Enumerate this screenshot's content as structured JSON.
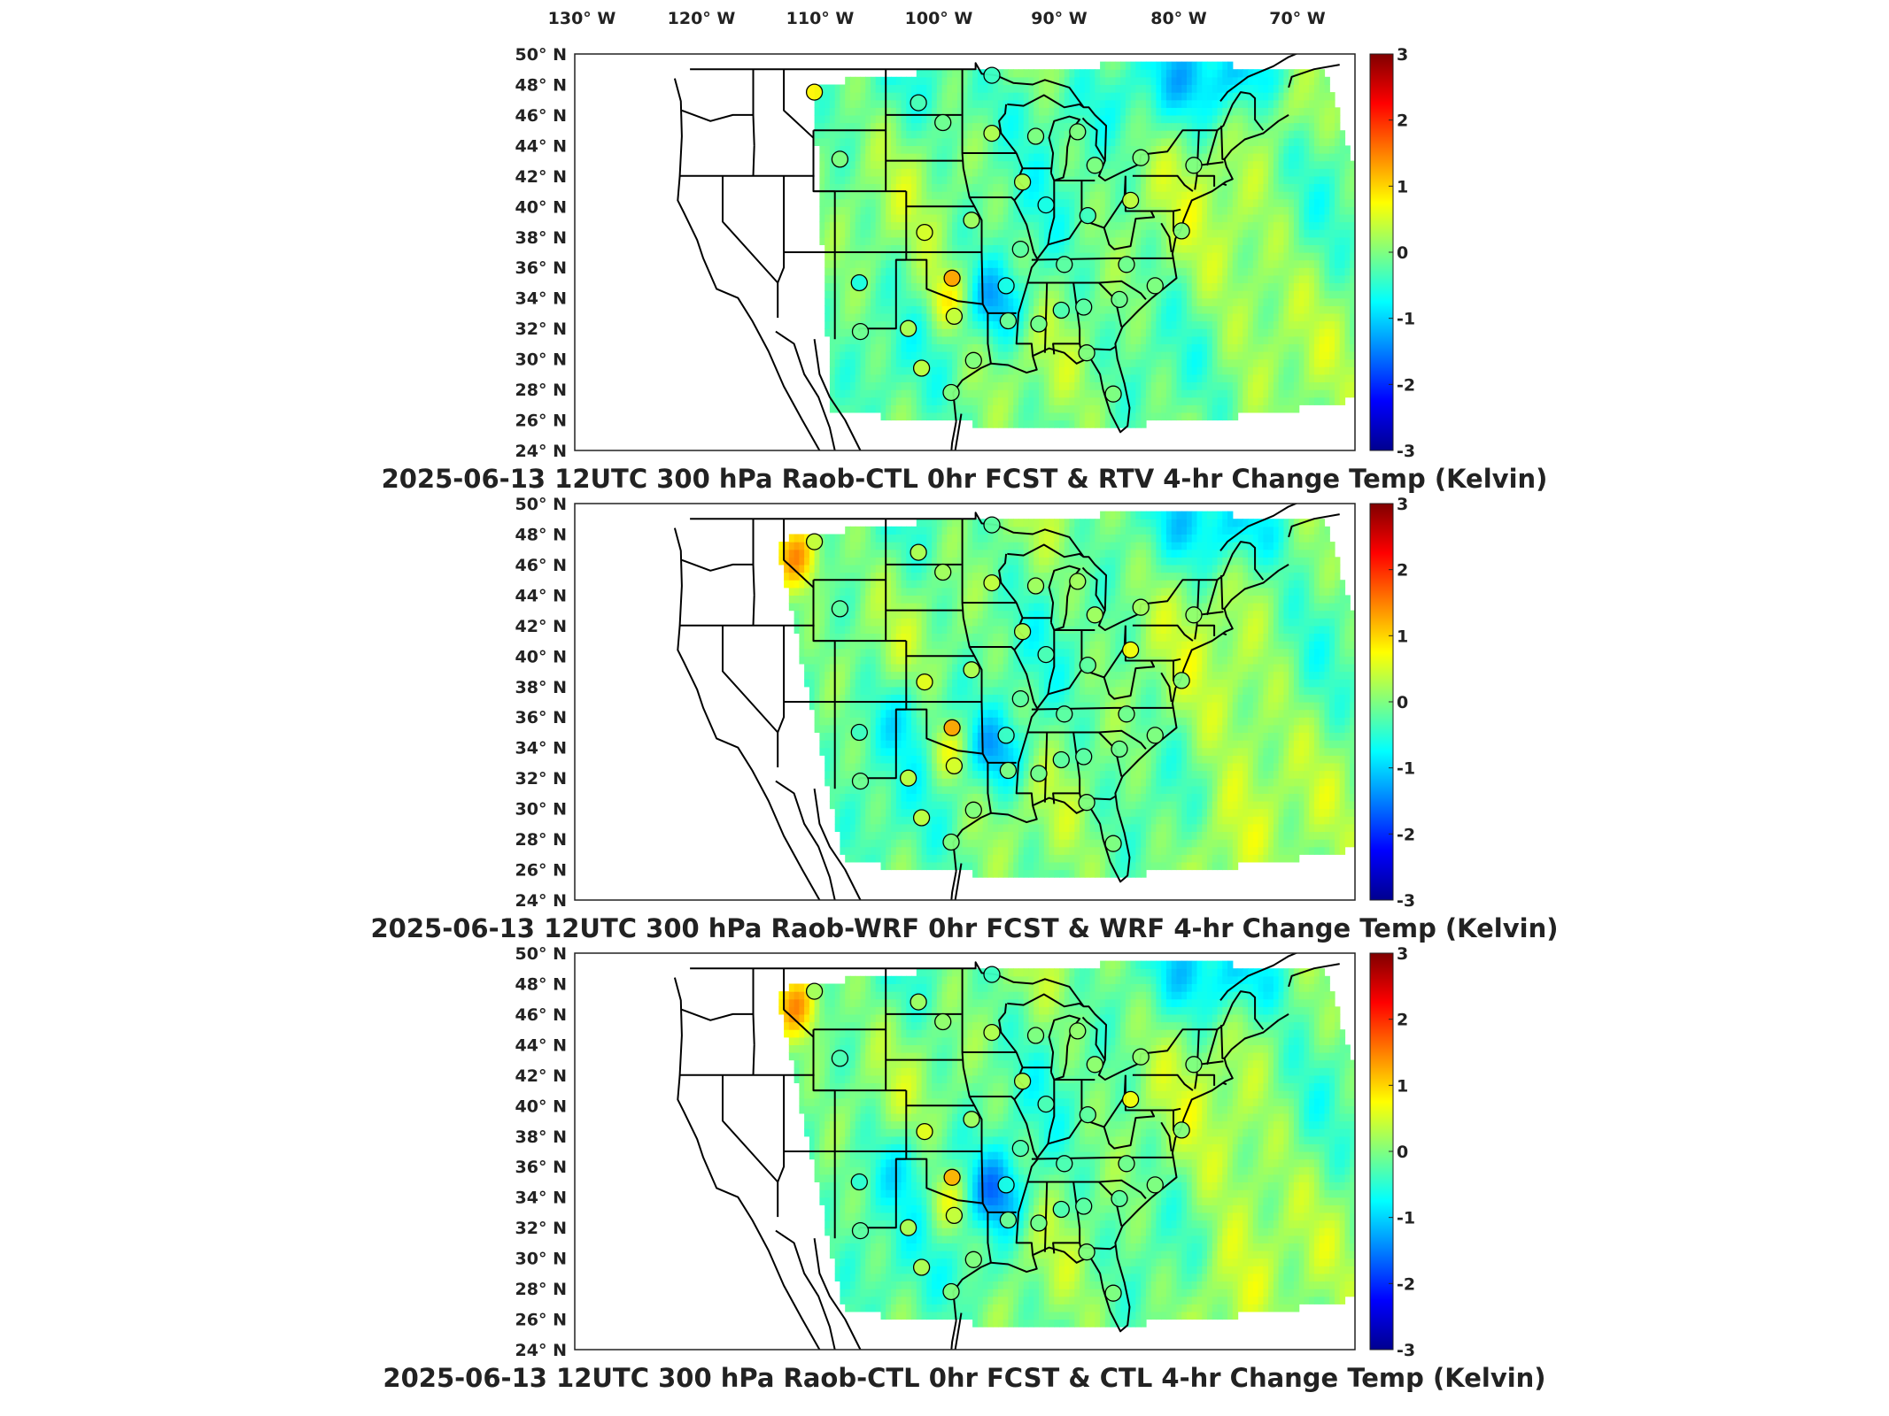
{
  "lon_labels": [
    "130° W",
    "120° W",
    "110° W",
    "100° W",
    "90° W",
    "80° W",
    "70° W"
  ],
  "lat_labels": [
    "50° N",
    "48° N",
    "46° N",
    "44° N",
    "42° N",
    "40° N",
    "38° N",
    "36° N",
    "34° N",
    "32° N",
    "30° N",
    "28° N",
    "26° N",
    "24° N"
  ],
  "colorbar": {
    "ticks": [
      "3",
      "2",
      "1",
      "0",
      "-1",
      "-2",
      "-3"
    ],
    "min": -3,
    "max": 3,
    "colormap": "jet"
  },
  "panels": [
    {
      "title": "2025-06-13 12UTC 300 hPa Raob-CTL 0hr FCST & RTV 4-hr Change Temp (Kelvin)",
      "mode": "rtv"
    },
    {
      "title": "2025-06-13 12UTC 300 hPa Raob-WRF 0hr FCST & WRF 4-hr Change Temp (Kelvin)",
      "mode": "wrf"
    },
    {
      "title": "2025-06-13 12UTC 300 hPa Raob-CTL 0hr FCST & CTL 4-hr Change Temp (Kelvin)",
      "mode": "ctl"
    }
  ],
  "stations": [
    {
      "lon": -111.0,
      "lat": 47.5,
      "v": [
        0.8,
        0.4,
        0.2
      ]
    },
    {
      "lon": -100.8,
      "lat": 46.8,
      "v": [
        -0.3,
        0.3,
        0.2
      ]
    },
    {
      "lon": -93.6,
      "lat": 48.6,
      "v": [
        -0.4,
        -0.2,
        -0.4
      ]
    },
    {
      "lon": -98.4,
      "lat": 45.5,
      "v": [
        -0.1,
        0.2,
        0.1
      ]
    },
    {
      "lon": -108.5,
      "lat": 43.1,
      "v": [
        0.0,
        -0.2,
        -0.3
      ]
    },
    {
      "lon": -93.6,
      "lat": 44.8,
      "v": [
        0.3,
        0.4,
        0.3
      ]
    },
    {
      "lon": -89.3,
      "lat": 44.6,
      "v": [
        0.0,
        0.2,
        0.0
      ]
    },
    {
      "lon": -85.2,
      "lat": 44.9,
      "v": [
        0.0,
        0.2,
        0.1
      ]
    },
    {
      "lon": -83.5,
      "lat": 42.7,
      "v": [
        0.0,
        0.2,
        0.1
      ]
    },
    {
      "lon": -79.0,
      "lat": 43.2,
      "v": [
        0.0,
        0.2,
        0.1
      ]
    },
    {
      "lon": -73.8,
      "lat": 42.7,
      "v": [
        0.0,
        0.1,
        0.0
      ]
    },
    {
      "lon": -90.6,
      "lat": 41.6,
      "v": [
        0.3,
        0.3,
        0.3
      ]
    },
    {
      "lon": -88.3,
      "lat": 40.1,
      "v": [
        -0.6,
        -0.3,
        -0.3
      ]
    },
    {
      "lon": -84.2,
      "lat": 39.4,
      "v": [
        -0.4,
        -0.2,
        -0.2
      ]
    },
    {
      "lon": -80.0,
      "lat": 40.4,
      "v": [
        0.4,
        0.7,
        0.7
      ]
    },
    {
      "lon": -75.0,
      "lat": 38.4,
      "v": [
        0.0,
        0.0,
        0.0
      ]
    },
    {
      "lon": -100.2,
      "lat": 38.3,
      "v": [
        0.5,
        0.6,
        0.6
      ]
    },
    {
      "lon": -95.6,
      "lat": 39.1,
      "v": [
        0.2,
        0.3,
        0.2
      ]
    },
    {
      "lon": -90.8,
      "lat": 37.2,
      "v": [
        -0.2,
        -0.2,
        -0.3
      ]
    },
    {
      "lon": -86.5,
      "lat": 36.2,
      "v": [
        -0.2,
        -0.2,
        -0.3
      ]
    },
    {
      "lon": -80.4,
      "lat": 36.2,
      "v": [
        -0.1,
        -0.1,
        -0.1
      ]
    },
    {
      "lon": -106.6,
      "lat": 35.0,
      "v": [
        -0.6,
        -0.4,
        -0.5
      ]
    },
    {
      "lon": -97.5,
      "lat": 35.3,
      "v": [
        1.3,
        1.3,
        1.2
      ]
    },
    {
      "lon": -92.2,
      "lat": 34.8,
      "v": [
        -0.6,
        -0.4,
        -0.6
      ]
    },
    {
      "lon": -86.8,
      "lat": 33.2,
      "v": [
        -0.3,
        -0.2,
        -0.3
      ]
    },
    {
      "lon": -84.6,
      "lat": 33.4,
      "v": [
        -0.2,
        -0.2,
        -0.2
      ]
    },
    {
      "lon": -81.1,
      "lat": 33.9,
      "v": [
        -0.1,
        -0.1,
        -0.2
      ]
    },
    {
      "lon": -77.6,
      "lat": 34.8,
      "v": [
        0.0,
        0.0,
        0.0
      ]
    },
    {
      "lon": -106.5,
      "lat": 31.8,
      "v": [
        -0.1,
        -0.1,
        -0.2
      ]
    },
    {
      "lon": -101.8,
      "lat": 32.0,
      "v": [
        0.3,
        0.4,
        0.3
      ]
    },
    {
      "lon": -97.3,
      "lat": 32.8,
      "v": [
        0.4,
        0.5,
        0.4
      ]
    },
    {
      "lon": -92.0,
      "lat": 32.5,
      "v": [
        -0.1,
        0.0,
        -0.1
      ]
    },
    {
      "lon": -89.0,
      "lat": 32.3,
      "v": [
        -0.1,
        -0.1,
        -0.1
      ]
    },
    {
      "lon": -100.5,
      "lat": 29.4,
      "v": [
        0.4,
        0.4,
        0.3
      ]
    },
    {
      "lon": -95.4,
      "lat": 29.9,
      "v": [
        0.0,
        0.0,
        0.0
      ]
    },
    {
      "lon": -84.3,
      "lat": 30.4,
      "v": [
        0.0,
        0.0,
        0.0
      ]
    },
    {
      "lon": -81.7,
      "lat": 27.7,
      "v": [
        0.0,
        0.0,
        0.0
      ]
    },
    {
      "lon": -97.6,
      "lat": 27.8,
      "v": [
        0.0,
        0.0,
        0.0
      ]
    }
  ]
}
